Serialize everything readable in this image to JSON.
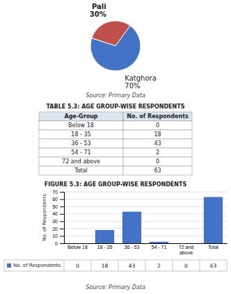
{
  "chart_data": [
    {
      "type": "pie",
      "categories": [
        "Pali",
        "Katghora"
      ],
      "values": [
        30,
        70
      ],
      "value_labels": [
        "30%",
        "70%"
      ],
      "data_labels": true,
      "colors": [
        "#c0504d",
        "#4472c4"
      ],
      "annotations": [
        "Source: Primary Data"
      ]
    },
    {
      "type": "table",
      "title": "TABLE 5.3: AGE GROUP-WISE RESPONDENTS",
      "columns": [
        "Age-Group",
        "No. of Respondents"
      ],
      "rows": [
        [
          "Below 18",
          "0"
        ],
        [
          "18 - 35",
          "18"
        ],
        [
          "36 - 53",
          "43"
        ],
        [
          "54 - 71",
          "2"
        ],
        [
          "72 and above",
          "0"
        ],
        [
          "Total",
          "63"
        ]
      ]
    },
    {
      "type": "bar",
      "title": "FIGURE 5.3: AGE GROUP-WISE RESPONDENTS",
      "categories": [
        "Below 18",
        "18 - 35",
        "36 - 53",
        "54 - 71",
        "72 and\nabove",
        "Total"
      ],
      "series": [
        {
          "name": "No. of Respondents",
          "color": "#4472c4",
          "values": [
            0,
            18,
            43,
            2,
            0,
            63
          ]
        }
      ],
      "ylabel": "No. of Respondents",
      "ylim": [
        0,
        70
      ],
      "yticks": [
        0,
        10,
        20,
        30,
        40,
        50,
        60,
        70
      ],
      "grid": true,
      "data_labels": true,
      "annotations": [
        "Source: Primary Data"
      ]
    }
  ]
}
